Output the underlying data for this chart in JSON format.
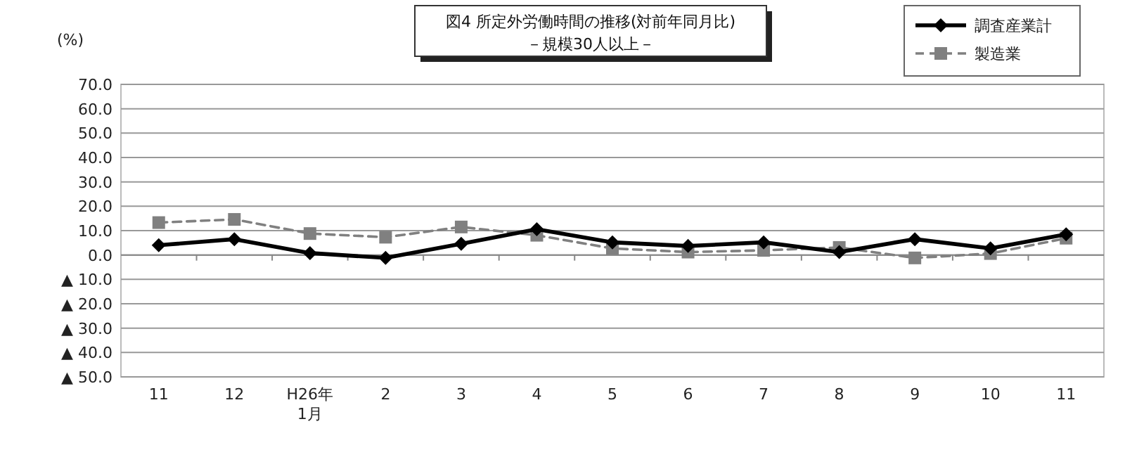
{
  "chart_data": {
    "type": "line",
    "title": "図4  所定外労働時間の推移(対前年同月比)",
    "subtitle": "－規模30人以上－",
    "ylabel": "(%)",
    "categories": [
      "11",
      "12",
      "H26年\n1月",
      "2",
      "3",
      "4",
      "5",
      "6",
      "7",
      "8",
      "9",
      "10",
      "11"
    ],
    "series": [
      {
        "name": "調査産業計",
        "color": "#000000",
        "marker": "diamond",
        "line_style": "solid",
        "values": [
          4.0,
          6.5,
          0.8,
          -1.2,
          4.6,
          10.6,
          5.2,
          3.7,
          5.2,
          1.2,
          6.5,
          2.7,
          8.5
        ]
      },
      {
        "name": "製造業",
        "color": "#808080",
        "marker": "square",
        "line_style": "dashed",
        "values": [
          13.3,
          14.6,
          8.8,
          7.3,
          11.5,
          8.1,
          2.7,
          1.2,
          1.9,
          3.1,
          -1.2,
          0.6,
          6.9
        ]
      }
    ],
    "ylim": [
      -50,
      70
    ],
    "yticks": [
      {
        "value": 70,
        "label": "70.0"
      },
      {
        "value": 60,
        "label": "60.0"
      },
      {
        "value": 50,
        "label": "50.0"
      },
      {
        "value": 40,
        "label": "40.0"
      },
      {
        "value": 30,
        "label": "30.0"
      },
      {
        "value": 20,
        "label": "20.0"
      },
      {
        "value": 10,
        "label": "10.0"
      },
      {
        "value": 0,
        "label": "0.0"
      },
      {
        "value": -10,
        "label": "▲ 10.0"
      },
      {
        "value": -20,
        "label": "▲ 20.0"
      },
      {
        "value": -30,
        "label": "▲ 30.0"
      },
      {
        "value": -40,
        "label": "▲ 40.0"
      },
      {
        "value": -50,
        "label": "▲ 50.0"
      }
    ],
    "grid": "y",
    "legend": "top right"
  }
}
